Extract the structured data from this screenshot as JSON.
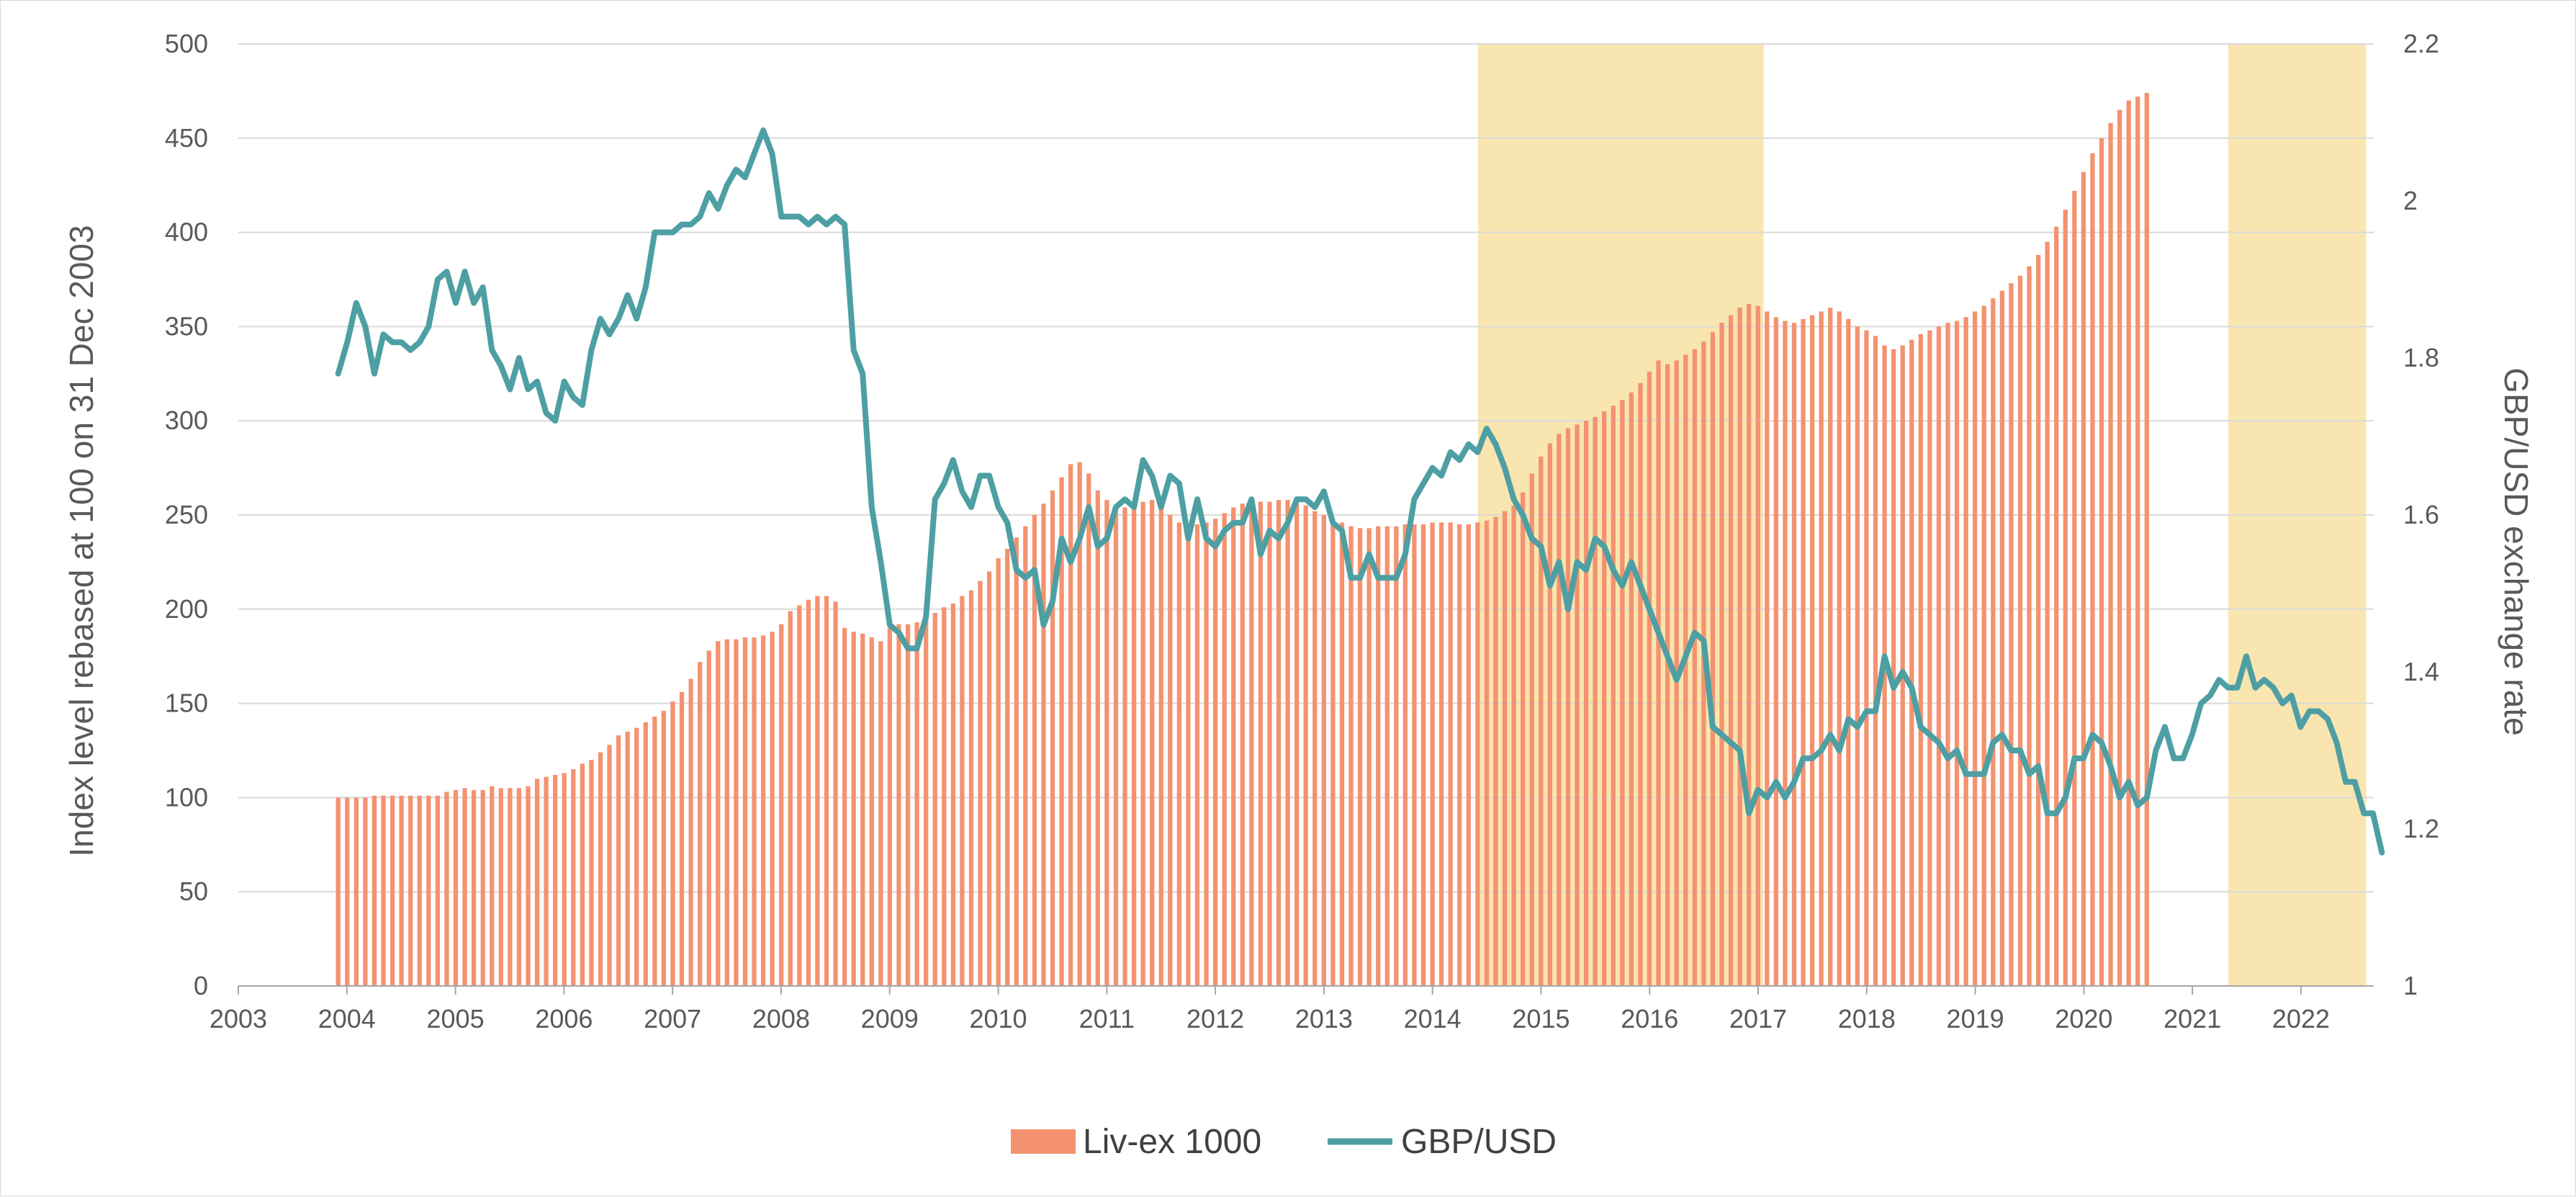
{
  "colors": {
    "bars": "#f4926f",
    "line": "#4e9fa3",
    "shade": "#f9e5af",
    "grid": "#d9d9d9",
    "text": "#595959"
  },
  "legend": {
    "placement": "bottom-center",
    "bars_label": "Liv-ex 1000",
    "line_label": "GBP/USD"
  },
  "chart_data": {
    "type": "bar+line",
    "title": "",
    "xlabel": "",
    "ylabel": "Index level rebased at 100 on 31 Dec 2003",
    "y2label": "GBP/USD exchange rate",
    "xlim": [
      2003,
      2022.67
    ],
    "ylim": [
      0,
      500
    ],
    "y2lim": [
      1,
      2.2
    ],
    "x_ticks": [
      "2003",
      "2004",
      "2005",
      "2006",
      "2007",
      "2008",
      "2009",
      "2010",
      "2011",
      "2012",
      "2013",
      "2014",
      "2015",
      "2016",
      "2017",
      "2018",
      "2019",
      "2020",
      "2021",
      "2022"
    ],
    "y_ticks": [
      0,
      50,
      100,
      150,
      200,
      250,
      300,
      350,
      400,
      450,
      500
    ],
    "y2_ticks": [
      "1",
      "1.2",
      "1.4",
      "1.6",
      "1.8",
      "2",
      "2.2"
    ],
    "grid": "horizontal",
    "shaded_periods": [
      [
        2014.42,
        2017.05
      ],
      [
        2021.33,
        2022.6
      ]
    ],
    "series": [
      {
        "name": "Liv-ex 1000",
        "type": "bar",
        "axis": "left",
        "start": 2003.92,
        "step": 0.0833,
        "values": [
          100,
          100,
          100,
          100,
          101,
          101,
          101,
          101,
          101,
          101,
          101,
          101,
          103,
          104,
          105,
          104,
          104,
          106,
          105,
          105,
          105,
          106,
          110,
          111,
          112,
          113,
          115,
          118,
          120,
          124,
          128,
          133,
          135,
          137,
          140,
          143,
          146,
          151,
          156,
          163,
          172,
          178,
          183,
          184,
          184,
          185,
          185,
          186,
          188,
          192,
          199,
          202,
          205,
          207,
          207,
          204,
          190,
          188,
          187,
          185,
          183,
          190,
          192,
          192,
          193,
          195,
          198,
          201,
          203,
          207,
          210,
          215,
          220,
          227,
          232,
          238,
          244,
          250,
          256,
          263,
          270,
          277,
          278,
          272,
          263,
          258,
          255,
          254,
          255,
          257,
          258,
          256,
          250,
          246,
          245,
          245,
          246,
          248,
          251,
          254,
          256,
          257,
          257,
          257,
          258,
          258,
          257,
          255,
          252,
          250,
          248,
          246,
          244,
          243,
          243,
          244,
          244,
          244,
          245,
          245,
          245,
          246,
          246,
          246,
          245,
          245,
          246,
          247,
          249,
          252,
          255,
          262,
          272,
          281,
          288,
          293,
          296,
          298,
          300,
          302,
          305,
          308,
          311,
          315,
          320,
          326,
          332,
          330,
          332,
          335,
          338,
          342,
          347,
          352,
          356,
          360,
          362,
          361,
          358,
          355,
          353,
          352,
          354,
          356,
          358,
          360,
          358,
          354,
          350,
          348,
          345,
          340,
          338,
          340,
          343,
          346,
          348,
          350,
          352,
          353,
          355,
          358,
          361,
          365,
          369,
          373,
          377,
          382,
          388,
          395,
          403,
          412,
          422,
          432,
          442,
          450,
          458,
          465,
          470,
          472,
          474
        ]
      },
      {
        "name": "GBP/USD",
        "type": "line",
        "axis": "right",
        "start": 2003.92,
        "step": 0.0833,
        "values": [
          1.78,
          1.82,
          1.87,
          1.84,
          1.78,
          1.83,
          1.82,
          1.82,
          1.81,
          1.82,
          1.84,
          1.9,
          1.91,
          1.87,
          1.91,
          1.87,
          1.89,
          1.81,
          1.79,
          1.76,
          1.8,
          1.76,
          1.77,
          1.73,
          1.72,
          1.77,
          1.75,
          1.74,
          1.81,
          1.85,
          1.83,
          1.85,
          1.88,
          1.85,
          1.89,
          1.96,
          1.96,
          1.96,
          1.97,
          1.97,
          1.98,
          2.01,
          1.99,
          2.02,
          2.04,
          2.03,
          2.06,
          2.09,
          2.06,
          1.98,
          1.98,
          1.98,
          1.97,
          1.98,
          1.97,
          1.98,
          1.97,
          1.81,
          1.78,
          1.61,
          1.54,
          1.46,
          1.45,
          1.43,
          1.43,
          1.47,
          1.62,
          1.64,
          1.67,
          1.63,
          1.61,
          1.65,
          1.65,
          1.61,
          1.59,
          1.53,
          1.52,
          1.53,
          1.46,
          1.49,
          1.57,
          1.54,
          1.57,
          1.61,
          1.56,
          1.57,
          1.61,
          1.62,
          1.61,
          1.67,
          1.65,
          1.61,
          1.65,
          1.64,
          1.57,
          1.62,
          1.57,
          1.56,
          1.58,
          1.59,
          1.59,
          1.62,
          1.55,
          1.58,
          1.57,
          1.59,
          1.62,
          1.62,
          1.61,
          1.63,
          1.59,
          1.58,
          1.52,
          1.52,
          1.55,
          1.52,
          1.52,
          1.52,
          1.55,
          1.62,
          1.64,
          1.66,
          1.65,
          1.68,
          1.67,
          1.69,
          1.68,
          1.71,
          1.69,
          1.66,
          1.62,
          1.6,
          1.57,
          1.56,
          1.51,
          1.54,
          1.48,
          1.54,
          1.53,
          1.57,
          1.56,
          1.53,
          1.51,
          1.54,
          1.51,
          1.48,
          1.45,
          1.42,
          1.39,
          1.42,
          1.45,
          1.44,
          1.33,
          1.32,
          1.31,
          1.3,
          1.22,
          1.25,
          1.24,
          1.26,
          1.24,
          1.26,
          1.29,
          1.29,
          1.3,
          1.32,
          1.3,
          1.34,
          1.33,
          1.35,
          1.35,
          1.42,
          1.38,
          1.4,
          1.38,
          1.33,
          1.32,
          1.31,
          1.29,
          1.3,
          1.27,
          1.27,
          1.27,
          1.31,
          1.32,
          1.3,
          1.3,
          1.27,
          1.28,
          1.22,
          1.22,
          1.24,
          1.29,
          1.29,
          1.32,
          1.31,
          1.28,
          1.24,
          1.26,
          1.23,
          1.24,
          1.3,
          1.33,
          1.29,
          1.29,
          1.32,
          1.36,
          1.37,
          1.39,
          1.38,
          1.38,
          1.42,
          1.38,
          1.39,
          1.38,
          1.36,
          1.37,
          1.33,
          1.35,
          1.35,
          1.34,
          1.31,
          1.26,
          1.26,
          1.22,
          1.22,
          1.17
        ]
      }
    ]
  }
}
